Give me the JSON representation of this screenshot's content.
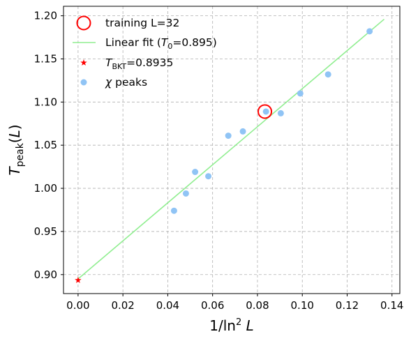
{
  "chart_data": {
    "type": "scatter",
    "xlabel": "1/ln² L",
    "ylabel": "T_peak(L)",
    "xlim": [
      -0.0065,
      0.1435
    ],
    "ylim": [
      0.878,
      1.211
    ],
    "x_ticks": [
      "0.00",
      "0.02",
      "0.04",
      "0.06",
      "0.08",
      "0.10",
      "0.12",
      "0.14"
    ],
    "y_ticks": [
      "0.90",
      "0.95",
      "1.00",
      "1.05",
      "1.10",
      "1.15",
      "1.20"
    ],
    "grid": true,
    "legend_position": "top-left",
    "series": [
      {
        "name": "χ peaks",
        "kind": "scatter",
        "color": "#90c4f5",
        "points": [
          {
            "x": 0.0428,
            "y": 0.974
          },
          {
            "x": 0.0481,
            "y": 0.994
          },
          {
            "x": 0.0522,
            "y": 1.019
          },
          {
            "x": 0.0581,
            "y": 1.014
          },
          {
            "x": 0.067,
            "y": 1.061
          },
          {
            "x": 0.0735,
            "y": 1.066
          },
          {
            "x": 0.0838,
            "y": 1.089
          },
          {
            "x": 0.0904,
            "y": 1.087
          },
          {
            "x": 0.0991,
            "y": 1.11
          },
          {
            "x": 0.1115,
            "y": 1.132
          },
          {
            "x": 0.13,
            "y": 1.182
          }
        ]
      },
      {
        "name": "Linear fit (T0=0.895)",
        "kind": "line",
        "color": "#90ee90",
        "points": [
          {
            "x": 0.0,
            "y": 0.895
          },
          {
            "x": 0.1365,
            "y": 1.196
          }
        ]
      },
      {
        "name": "T_BKT=0.8935",
        "kind": "star",
        "color": "#ff0000",
        "points": [
          {
            "x": 0.0,
            "y": 0.8935
          }
        ]
      },
      {
        "name": "training L=32",
        "kind": "ring",
        "color": "#ff0000",
        "points": [
          {
            "x": 0.0833,
            "y": 1.089
          }
        ]
      }
    ],
    "legend": [
      {
        "marker": "ring",
        "color": "#ff0000",
        "text": "training L=32"
      },
      {
        "marker": "line",
        "color": "#90ee90",
        "text": "Linear fit (",
        "italic": "T",
        "sub": "0",
        "after": "=0.895)"
      },
      {
        "marker": "star",
        "color": "#ff0000",
        "italic": "T",
        "sub": "BKT",
        "after": "=0.8935"
      },
      {
        "marker": "dot",
        "color": "#90c4f5",
        "italic": "χ",
        "after": " peaks"
      }
    ]
  }
}
